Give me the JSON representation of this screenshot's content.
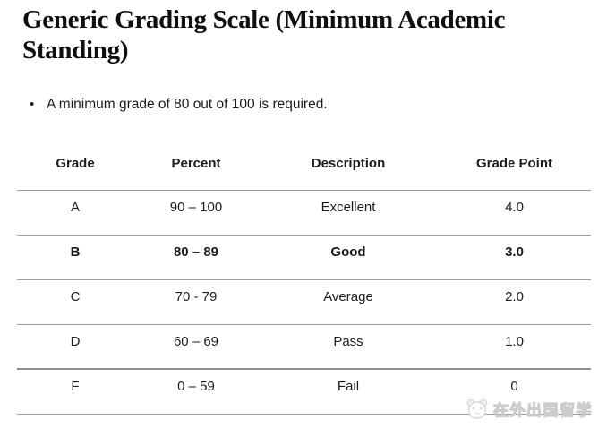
{
  "page": {
    "title": "Generic Grading Scale (Minimum Academic Standing)",
    "note": "A minimum grade of 80 out of 100 is required."
  },
  "table": {
    "columns": [
      "Grade",
      "Percent",
      "Description",
      "Grade Point"
    ],
    "rows": [
      {
        "grade": "A",
        "percent": "90 – 100",
        "description": "Excellent",
        "grade_point": "4.0",
        "emphasis": false,
        "heavy_divider_below": false
      },
      {
        "grade": "B",
        "percent": "80 – 89",
        "description": "Good",
        "grade_point": "3.0",
        "emphasis": true,
        "heavy_divider_below": false
      },
      {
        "grade": "C",
        "percent": "70 - 79",
        "description": "Average",
        "grade_point": "2.0",
        "emphasis": false,
        "heavy_divider_below": false
      },
      {
        "grade": "D",
        "percent": "60 – 69",
        "description": "Pass",
        "grade_point": "1.0",
        "emphasis": false,
        "heavy_divider_below": true
      },
      {
        "grade": "F",
        "percent": "0 – 59",
        "description": "Fail",
        "grade_point": "0",
        "emphasis": false,
        "heavy_divider_below": false
      }
    ]
  },
  "watermark": {
    "text": "在外出国留学",
    "icon": "panda-logo-icon"
  },
  "colors": {
    "background": "#ffffff",
    "text": "#1a1a1a",
    "table_rule": "#9e9e9e",
    "table_heavy_rule": "#8f8f8f",
    "watermark_outline": "#cccccc"
  }
}
